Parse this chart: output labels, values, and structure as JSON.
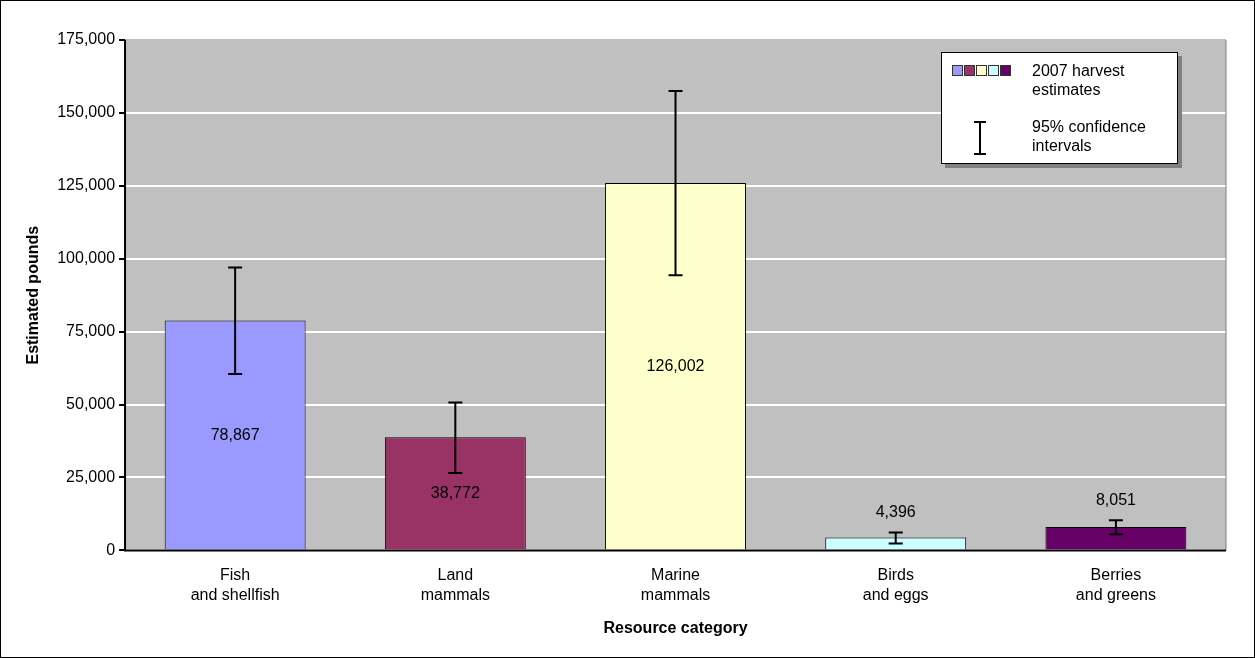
{
  "chart_data": {
    "type": "bar",
    "xlabel": "Resource category",
    "ylabel": "Estimated pounds",
    "categories": [
      "Fish and shellfish",
      "Land mammals",
      "Marine mammals",
      "Birds and eggs",
      "Berries and greens"
    ],
    "series": [
      {
        "name": "2007 harvest estimates",
        "colors": [
          "#9999ff",
          "#993366",
          "#ffffcc",
          "#ccffff",
          "#660066"
        ],
        "values": [
          78867,
          38772,
          126002,
          4396,
          8051
        ],
        "value_labels": [
          "78,867",
          "38,772",
          "126,002",
          "4,396",
          "8,051"
        ],
        "errors": [
          [
            60500,
            97000
          ],
          [
            26500,
            50700
          ],
          [
            94300,
            157500
          ],
          [
            2400,
            6100
          ],
          [
            5500,
            10300
          ]
        ]
      }
    ],
    "annotations": [
      "95% confidence intervals"
    ],
    "ylim": [
      0,
      175000
    ],
    "yticks": [
      0,
      {
        "value": 25000,
        "label": "25,000"
      },
      {
        "value": 50000,
        "label": "50,000"
      },
      {
        "value": 75000,
        "label": "75,000"
      },
      {
        "value": 100000,
        "label": "100,000"
      },
      {
        "value": 125000,
        "label": "125,000"
      },
      {
        "value": 150000,
        "label": "150,000"
      },
      {
        "value": 175000,
        "label": "175,000"
      }
    ],
    "grid": "y",
    "legend": "top right"
  }
}
